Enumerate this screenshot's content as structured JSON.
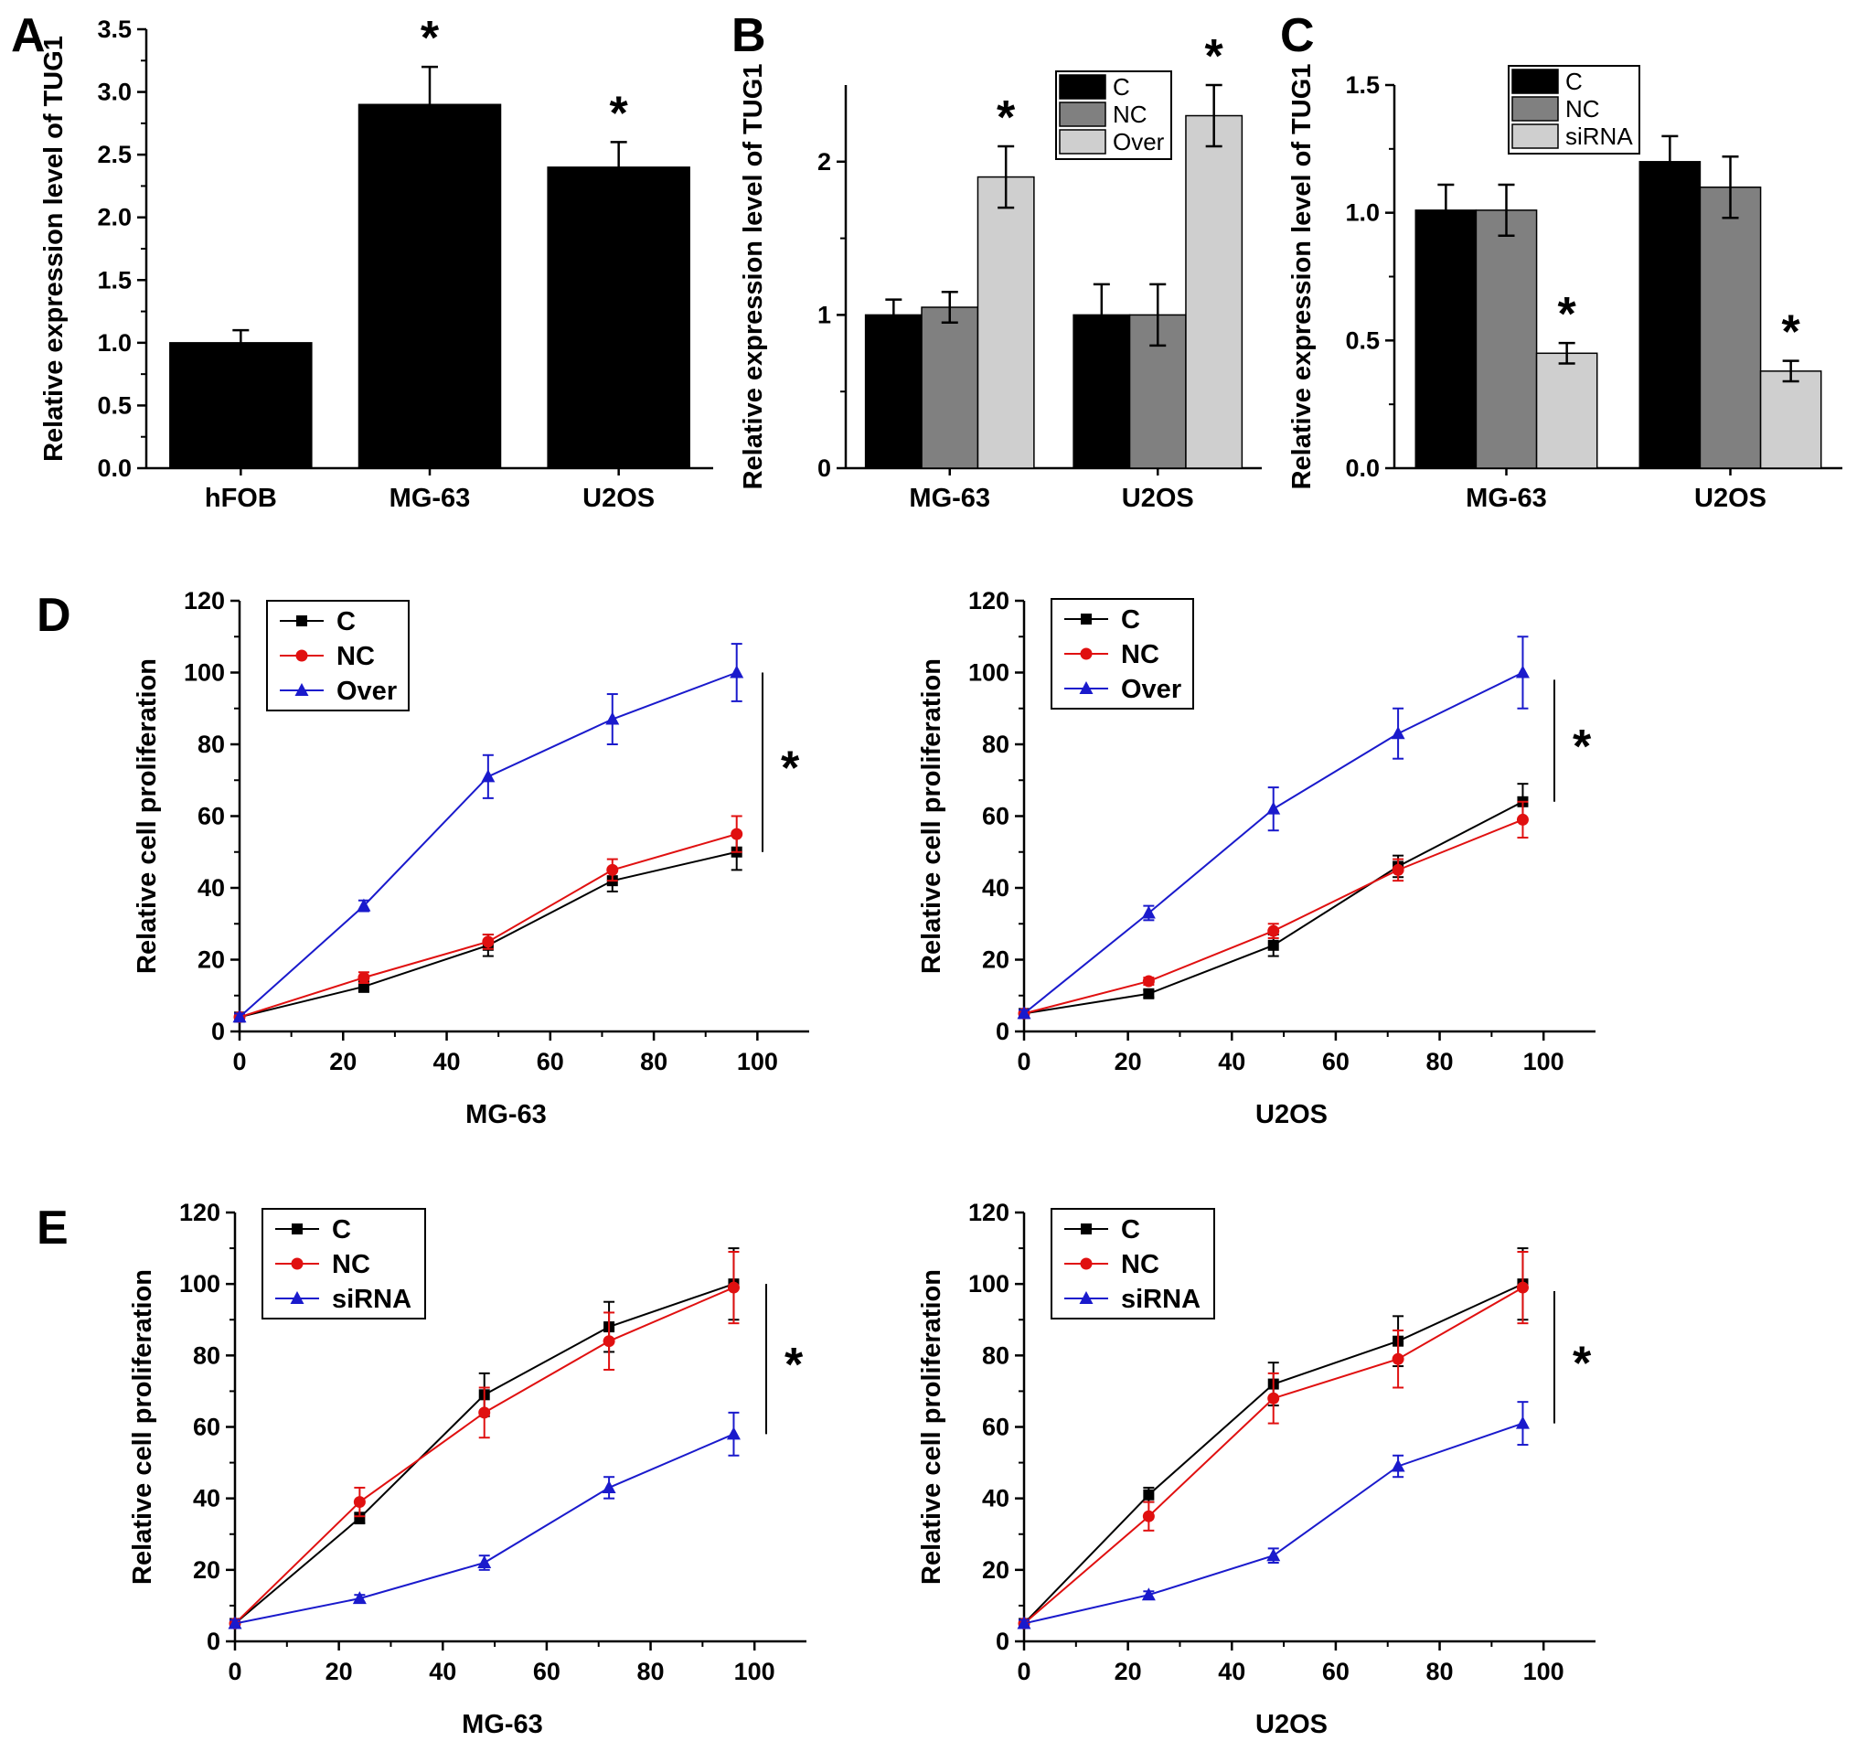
{
  "panels": [
    {
      "id": "A",
      "label": "A"
    },
    {
      "id": "B",
      "label": "B"
    },
    {
      "id": "C",
      "label": "C"
    },
    {
      "id": "D",
      "label": "D"
    },
    {
      "id": "E",
      "label": "E"
    }
  ],
  "chart_data": [
    {
      "panel": "A",
      "type": "bar",
      "ylabel": "Relative expression level of TUG1",
      "ylim": [
        0,
        3.5
      ],
      "yticks": [
        "0.0",
        "0.5",
        "1.0",
        "1.5",
        "2.0",
        "2.5",
        "3.0",
        "3.5"
      ],
      "categories": [
        "hFOB",
        "MG-63",
        "U2OS"
      ],
      "series": [
        {
          "values": [
            1.0,
            2.9,
            2.4
          ],
          "errors": [
            0.1,
            0.3,
            0.2
          ],
          "color": "#000000"
        }
      ],
      "significance": [
        "",
        "*",
        "*"
      ],
      "grid": false
    },
    {
      "panel": "B",
      "type": "bar",
      "ylabel": "Relative expression level of TUG1",
      "ylim": [
        0,
        2.5
      ],
      "yticks": [
        "0",
        "1",
        "2"
      ],
      "categories": [
        "MG-63",
        "U2OS"
      ],
      "series": [
        {
          "name": "C",
          "values": [
            1.0,
            1.0
          ],
          "errors": [
            0.1,
            0.2
          ],
          "color": "#000000"
        },
        {
          "name": "NC",
          "values": [
            1.05,
            1.0
          ],
          "errors": [
            0.1,
            0.2
          ],
          "color": "#808080"
        },
        {
          "name": "Over",
          "values": [
            1.9,
            2.3
          ],
          "errors": [
            0.2,
            0.2
          ],
          "color": "#cfcfcf"
        }
      ],
      "significance": [
        "*",
        "*"
      ],
      "legend_position": "top-right",
      "grid": false
    },
    {
      "panel": "C",
      "type": "bar",
      "ylabel": "Relative expression level of TUG1",
      "ylim": [
        0,
        1.5
      ],
      "yticks": [
        "0.0",
        "0.5",
        "1.0",
        "1.5"
      ],
      "categories": [
        "MG-63",
        "U2OS"
      ],
      "series": [
        {
          "name": "C",
          "values": [
            1.01,
            1.2
          ],
          "errors": [
            0.1,
            0.1
          ],
          "color": "#000000"
        },
        {
          "name": "NC",
          "values": [
            1.01,
            1.1
          ],
          "errors": [
            0.1,
            0.12
          ],
          "color": "#808080"
        },
        {
          "name": "siRNA",
          "values": [
            0.45,
            0.38
          ],
          "errors": [
            0.04,
            0.04
          ],
          "color": "#cfcfcf"
        }
      ],
      "significance": [
        "*",
        "*"
      ],
      "legend_position": "top-center",
      "grid": false
    },
    {
      "panel": "D-left",
      "type": "line",
      "xlabel": "MG-63",
      "ylabel": "Relative cell proliferation",
      "xlim": [
        0,
        110
      ],
      "ylim": [
        0,
        120
      ],
      "xticks": [
        "0",
        "20",
        "40",
        "60",
        "80",
        "100"
      ],
      "yticks": [
        "0",
        "20",
        "40",
        "60",
        "80",
        "100",
        "120"
      ],
      "x": [
        0,
        24,
        48,
        72,
        96
      ],
      "series": [
        {
          "name": "C",
          "values": [
            4,
            12.5,
            24,
            42,
            50
          ],
          "errors": [
            1,
            1.5,
            3,
            3,
            5
          ],
          "color": "#000000",
          "marker": "square"
        },
        {
          "name": "NC",
          "values": [
            4,
            15,
            25,
            45,
            55
          ],
          "errors": [
            1,
            1.5,
            2,
            3,
            5
          ],
          "color": "#e01010",
          "marker": "circle"
        },
        {
          "name": "Over",
          "values": [
            4,
            35,
            71,
            87,
            100
          ],
          "errors": [
            1,
            1.5,
            6,
            7,
            8
          ],
          "color": "#1a1acc",
          "marker": "triangle"
        }
      ],
      "significance": "*",
      "legend_position": "top-left",
      "grid": false
    },
    {
      "panel": "D-right",
      "type": "line",
      "xlabel": "U2OS",
      "ylabel": "Relative cell proliferation",
      "xlim": [
        0,
        110
      ],
      "ylim": [
        0,
        120
      ],
      "xticks": [
        "0",
        "20",
        "40",
        "60",
        "80",
        "100"
      ],
      "yticks": [
        "0",
        "20",
        "40",
        "60",
        "80",
        "100",
        "120"
      ],
      "x": [
        0,
        24,
        48,
        72,
        96
      ],
      "series": [
        {
          "name": "C",
          "values": [
            5,
            10.5,
            24,
            46,
            64
          ],
          "errors": [
            1,
            1,
            3,
            3,
            5
          ],
          "color": "#000000",
          "marker": "square"
        },
        {
          "name": "NC",
          "values": [
            5,
            14,
            28,
            45,
            59
          ],
          "errors": [
            1,
            1,
            2,
            3,
            5
          ],
          "color": "#e01010",
          "marker": "circle"
        },
        {
          "name": "Over",
          "values": [
            5,
            33,
            62,
            83,
            100
          ],
          "errors": [
            1,
            2,
            6,
            7,
            10
          ],
          "color": "#1a1acc",
          "marker": "triangle"
        }
      ],
      "significance": "*",
      "legend_position": "top-left",
      "grid": false
    },
    {
      "panel": "E-left",
      "type": "line",
      "xlabel": "MG-63",
      "ylabel": "Relative cell proliferation",
      "xlim": [
        0,
        110
      ],
      "ylim": [
        0,
        120
      ],
      "xticks": [
        "0",
        "20",
        "40",
        "60",
        "80",
        "100"
      ],
      "yticks": [
        "0",
        "20",
        "40",
        "60",
        "80",
        "100",
        "120"
      ],
      "x": [
        0,
        24,
        48,
        72,
        96
      ],
      "series": [
        {
          "name": "C",
          "values": [
            5,
            34.5,
            69,
            88,
            100
          ],
          "errors": [
            1,
            1.5,
            6,
            7,
            10
          ],
          "color": "#000000",
          "marker": "square"
        },
        {
          "name": "NC",
          "values": [
            5,
            39,
            64,
            84,
            99
          ],
          "errors": [
            1,
            4,
            7,
            8,
            10
          ],
          "color": "#e01010",
          "marker": "circle"
        },
        {
          "name": "siRNA",
          "values": [
            5,
            12,
            22,
            43,
            58
          ],
          "errors": [
            1,
            1,
            2,
            3,
            6
          ],
          "color": "#1a1acc",
          "marker": "triangle"
        }
      ],
      "significance": "*",
      "legend_position": "top-left",
      "grid": false
    },
    {
      "panel": "E-right",
      "type": "line",
      "xlabel": "U2OS",
      "ylabel": "Relative cell proliferation",
      "xlim": [
        0,
        110
      ],
      "ylim": [
        0,
        120
      ],
      "xticks": [
        "0",
        "20",
        "40",
        "60",
        "80",
        "100"
      ],
      "yticks": [
        "0",
        "20",
        "40",
        "60",
        "80",
        "100",
        "120"
      ],
      "x": [
        0,
        24,
        48,
        72,
        96
      ],
      "series": [
        {
          "name": "C",
          "values": [
            5,
            41,
            72,
            84,
            100
          ],
          "errors": [
            1,
            2,
            6,
            7,
            10
          ],
          "color": "#000000",
          "marker": "square"
        },
        {
          "name": "NC",
          "values": [
            5,
            35,
            68,
            79,
            99
          ],
          "errors": [
            1,
            4,
            7,
            8,
            10
          ],
          "color": "#e01010",
          "marker": "circle"
        },
        {
          "name": "siRNA",
          "values": [
            5,
            13,
            24,
            49,
            61
          ],
          "errors": [
            1,
            1,
            2,
            3,
            6
          ],
          "color": "#1a1acc",
          "marker": "triangle"
        }
      ],
      "significance": "*",
      "legend_position": "top-left",
      "grid": false
    }
  ]
}
